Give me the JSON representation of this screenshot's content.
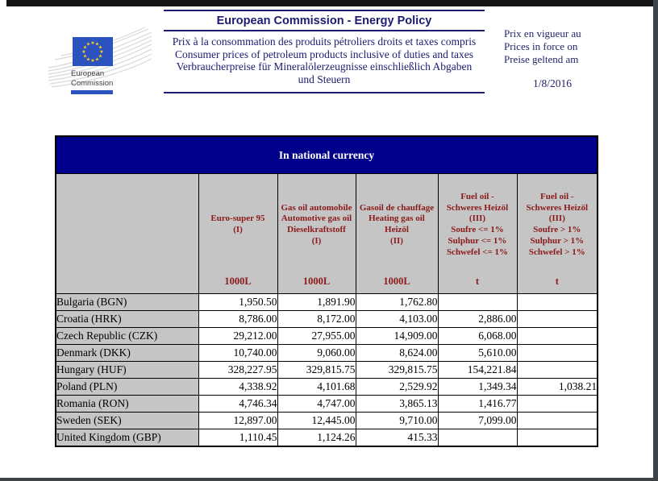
{
  "logo": {
    "label": "European\nCommission"
  },
  "header": {
    "title": "European Commission - Energy Policy",
    "subtitles": [
      "Prix à la consommation des produits pétroliers droits et taxes compris",
      "Consumer prices of petroleum products inclusive of duties and taxes",
      "Verbraucherpreise für Mineralölerzeugnisse einschließlich Abgaben und Steuern"
    ],
    "date_labels": [
      "Prix en vigueur au",
      "Prices in force on",
      "Preise geltend am"
    ],
    "date": "1/8/2016"
  },
  "table": {
    "title": "In national currency",
    "columns": [
      {
        "label": "Euro-super 95\n(I)",
        "unit": "1000L"
      },
      {
        "label": "Gas oil automobile\nAutomotive gas oil\nDieselkraftstoff\n(I)",
        "unit": "1000L"
      },
      {
        "label": "Gasoil de chauffage\nHeating gas oil\nHeizöl\n(II)",
        "unit": "1000L"
      },
      {
        "label": "Fuel oil -\nSchweres Heizöl\n(III)\nSoufre <= 1%\nSulphur <= 1%\nSchwefel <= 1%",
        "unit": "t"
      },
      {
        "label": "Fuel oil -\nSchweres Heizöl\n(III)\nSoufre > 1%\nSulphur > 1%\nSchwefel > 1%",
        "unit": "t"
      }
    ],
    "rows": [
      {
        "country": "Bulgaria (BGN)",
        "values": [
          "1,950.50",
          "1,891.90",
          "1,762.80",
          "",
          ""
        ]
      },
      {
        "country": "Croatia (HRK)",
        "values": [
          "8,786.00",
          "8,172.00",
          "4,103.00",
          "2,886.00",
          ""
        ]
      },
      {
        "country": "Czech Republic (CZK)",
        "values": [
          "29,212.00",
          "27,955.00",
          "14,909.00",
          "6,068.00",
          ""
        ]
      },
      {
        "country": "Denmark (DKK)",
        "values": [
          "10,740.00",
          "9,060.00",
          "8,624.00",
          "5,610.00",
          ""
        ]
      },
      {
        "country": "Hungary (HUF)",
        "values": [
          "328,227.95",
          "329,815.75",
          "329,815.75",
          "154,221.84",
          ""
        ]
      },
      {
        "country": "Poland (PLN)",
        "values": [
          "4,338.92",
          "4,101.68",
          "2,529.92",
          "1,349.34",
          "1,038.21"
        ]
      },
      {
        "country": "Romania (RON)",
        "values": [
          "4,746.34",
          "4,747.00",
          "3,865.13",
          "1,416.77",
          ""
        ]
      },
      {
        "country": "Sweden (SEK)",
        "values": [
          "12,897.00",
          "12,445.00",
          "9,710.00",
          "7,099.00",
          ""
        ]
      },
      {
        "country": "United Kingdom (GBP)",
        "values": [
          "1,110.45",
          "1,124.26",
          "415.33",
          "",
          ""
        ]
      }
    ]
  },
  "colors": {
    "table_title_bg": "#00008b",
    "header_cell_bg": "#c5c5c5",
    "header_text": "#8b1a1a",
    "accent_navy_text": "#1b1b70",
    "flag_blue": "#2b52bf",
    "star_yellow": "#ffd617",
    "border_black": "#000000"
  }
}
